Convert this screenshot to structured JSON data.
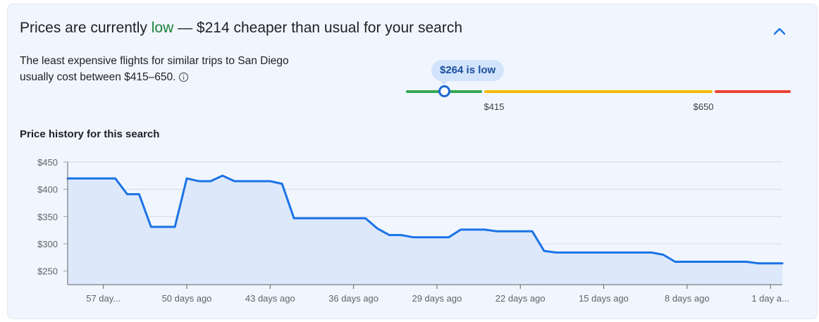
{
  "header": {
    "prefix": "Prices are currently ",
    "level": "low",
    "suffix": " — $214 cheaper than usual for your search"
  },
  "summary": {
    "text": "The least expensive flights for similar trips to San Diego usually cost between $415–650."
  },
  "price_meter": {
    "current_label": "$264 is low",
    "current_value": 264,
    "range_low": 415,
    "range_high": 650,
    "range_low_label": "$415",
    "range_high_label": "$650",
    "colors": {
      "low": "#34a853",
      "typical": "#fbbc04",
      "high": "#ea4335"
    }
  },
  "chart_title": "Price history for this search",
  "chart_data": {
    "type": "area",
    "title": "Price history for this search",
    "xlabel": "",
    "ylabel": "",
    "ylim": [
      225,
      450
    ],
    "xlim": [
      -60,
      0
    ],
    "x_unit": "days ago",
    "y_ticks": [
      450,
      400,
      350,
      300,
      250
    ],
    "y_tick_labels": [
      "$450",
      "$400",
      "$350",
      "$300",
      "$250"
    ],
    "x_ticks": [
      {
        "x": -57,
        "label": "57 day..."
      },
      {
        "x": -50,
        "label": "50 days ago"
      },
      {
        "x": -43,
        "label": "43 days ago"
      },
      {
        "x": -36,
        "label": "36 days ago"
      },
      {
        "x": -29,
        "label": "29 days ago"
      },
      {
        "x": -22,
        "label": "22 days ago"
      },
      {
        "x": -15,
        "label": "15 days ago"
      },
      {
        "x": -8,
        "label": "8 days ago"
      },
      {
        "x": -1,
        "label": "1 day a..."
      }
    ],
    "grid": true,
    "line_color": "#1a73e8",
    "fill_color": "#dde8fa",
    "points": [
      [
        -60,
        420
      ],
      [
        -56,
        420
      ],
      [
        -55,
        391
      ],
      [
        -54,
        391
      ],
      [
        -53,
        331
      ],
      [
        -51,
        331
      ],
      [
        -50,
        420
      ],
      [
        -49,
        415
      ],
      [
        -48,
        415
      ],
      [
        -47,
        425
      ],
      [
        -46,
        415
      ],
      [
        -43,
        415
      ],
      [
        -42,
        410
      ],
      [
        -41,
        347
      ],
      [
        -36,
        347
      ],
      [
        -35,
        347
      ],
      [
        -34,
        328
      ],
      [
        -33,
        316
      ],
      [
        -32,
        316
      ],
      [
        -31,
        312
      ],
      [
        -28,
        312
      ],
      [
        -27,
        326
      ],
      [
        -25,
        326
      ],
      [
        -24,
        323
      ],
      [
        -21,
        323
      ],
      [
        -20,
        287
      ],
      [
        -19,
        284
      ],
      [
        -11,
        284
      ],
      [
        -10,
        280
      ],
      [
        -9,
        267
      ],
      [
        -3,
        267
      ],
      [
        -2,
        264
      ],
      [
        0,
        264
      ]
    ]
  }
}
